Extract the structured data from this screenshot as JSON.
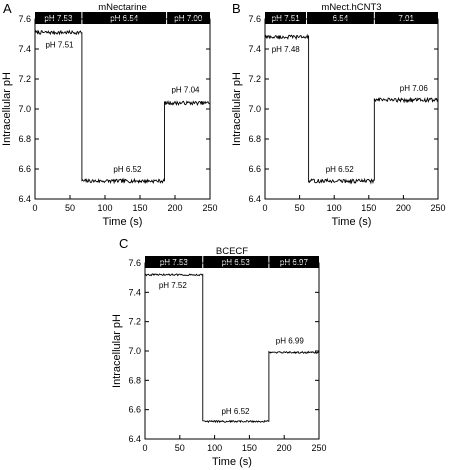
{
  "figure": {
    "panels": [
      "A",
      "B",
      "C"
    ]
  },
  "chart_data": [
    {
      "panel": "A",
      "type": "line",
      "title": "mNectarine",
      "xlabel": "Time (s)",
      "ylabel": "Intracellular pH",
      "xlim": [
        0,
        250
      ],
      "ylim": [
        6.4,
        7.6
      ],
      "xticks": [
        "0",
        "50",
        "100",
        "150",
        "200",
        "250"
      ],
      "yticks": [
        "6.4",
        "6.6",
        "6.8",
        "7.0",
        "7.2",
        "7.4",
        "7.6"
      ],
      "xtick_values": [
        0,
        50,
        100,
        150,
        200,
        250
      ],
      "ytick_values": [
        6.4,
        6.6,
        6.8,
        7.0,
        7.2,
        7.4,
        7.6
      ],
      "bath_bar": [
        {
          "label": "pH 7.53",
          "x0": 0,
          "x1": 67
        },
        {
          "label": "pH 6.54",
          "x0": 67,
          "x1": 188
        },
        {
          "label": "pH 7.00",
          "x0": 188,
          "x1": 250
        }
      ],
      "segments": [
        {
          "x0": 0,
          "x1": 67,
          "y": 7.51
        },
        {
          "x0": 67,
          "x1": 185,
          "y": 6.52
        },
        {
          "x0": 185,
          "x1": 250,
          "y": 7.04
        }
      ],
      "noise": 0.012,
      "annotations": [
        {
          "text": "pH 7.51",
          "x": 35,
          "y": 7.41
        },
        {
          "text": "pH 6.52",
          "x": 132,
          "y": 6.58
        },
        {
          "text": "pH 7.04",
          "x": 215,
          "y": 7.11
        }
      ]
    },
    {
      "panel": "B",
      "type": "line",
      "title": "mNect.hCNT3",
      "xlabel": "Time (s)",
      "ylabel": "Intracellular pH",
      "xlim": [
        0,
        250
      ],
      "ylim": [
        6.4,
        7.6
      ],
      "xticks": [
        "0",
        "50",
        "100",
        "150",
        "200",
        "250"
      ],
      "yticks": [
        "6.4",
        "6.6",
        "6.8",
        "7.0",
        "7.2",
        "7.4",
        "7.6"
      ],
      "xtick_values": [
        0,
        50,
        100,
        150,
        200,
        250
      ],
      "ytick_values": [
        6.4,
        6.6,
        6.8,
        7.0,
        7.2,
        7.4,
        7.6
      ],
      "bath_bar": [
        {
          "label": "pH 7.51",
          "x0": 0,
          "x1": 60
        },
        {
          "label": "6.54",
          "x0": 60,
          "x1": 158
        },
        {
          "label": "7.01",
          "x0": 158,
          "x1": 250
        }
      ],
      "segments": [
        {
          "x0": 0,
          "x1": 63,
          "y": 7.48
        },
        {
          "x0": 63,
          "x1": 158,
          "y": 6.52
        },
        {
          "x0": 158,
          "x1": 250,
          "y": 7.06
        }
      ],
      "noise": 0.013,
      "annotations": [
        {
          "text": "pH 7.48",
          "x": 30,
          "y": 7.38
        },
        {
          "text": "pH 6.52",
          "x": 108,
          "y": 6.58
        },
        {
          "text": "pH 7.06",
          "x": 215,
          "y": 7.12
        }
      ]
    },
    {
      "panel": "C",
      "type": "line",
      "title": "BCECF",
      "xlabel": "Time (s)",
      "ylabel": "Intracellular pH",
      "xlim": [
        0,
        250
      ],
      "ylim": [
        6.4,
        7.6
      ],
      "xticks": [
        "0",
        "50",
        "100",
        "150",
        "200",
        "250"
      ],
      "yticks": [
        "6.4",
        "6.6",
        "6.8",
        "7.0",
        "7.2",
        "7.4",
        "7.6"
      ],
      "xtick_values": [
        0,
        50,
        100,
        150,
        200,
        250
      ],
      "ytick_values": [
        6.4,
        6.6,
        6.8,
        7.0,
        7.2,
        7.4,
        7.6
      ],
      "bath_bar": [
        {
          "label": "pH 7.53",
          "x0": 0,
          "x1": 83
        },
        {
          "label": "pH 6.53",
          "x0": 83,
          "x1": 178
        },
        {
          "label": "pH 6.97",
          "x0": 178,
          "x1": 250
        }
      ],
      "segments": [
        {
          "x0": 0,
          "x1": 83,
          "y": 7.52
        },
        {
          "x0": 83,
          "x1": 178,
          "y": 6.52
        },
        {
          "x0": 178,
          "x1": 250,
          "y": 6.99
        }
      ],
      "noise": 0.006,
      "annotations": [
        {
          "text": "pH 7.52",
          "x": 40,
          "y": 7.43
        },
        {
          "text": "pH 6.52",
          "x": 130,
          "y": 6.57
        },
        {
          "text": "pH 6.99",
          "x": 208,
          "y": 7.05
        }
      ]
    }
  ]
}
